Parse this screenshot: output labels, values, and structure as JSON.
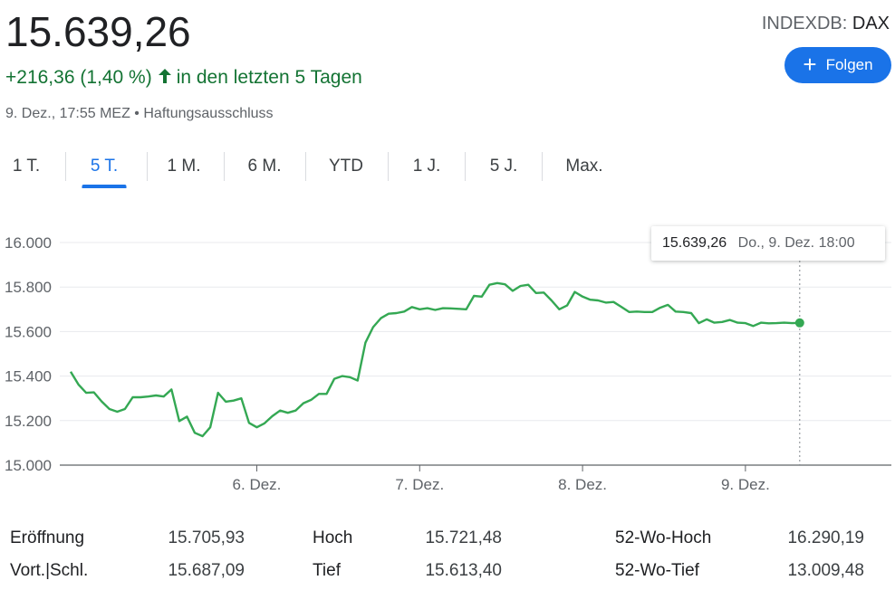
{
  "quote": {
    "price": "15.639,26",
    "change": "+216,36 (1,40 %)",
    "change_period": "in den letzten 5 Tagen",
    "timestamp": "9. Dez., 17:55 MEZ",
    "separator": "•",
    "disclaimer": "Haftungsausschluss",
    "exchange_prefix": "INDEXDB:",
    "symbol": "DAX",
    "follow_label": "Folgen",
    "accent_color": "#1a73e8",
    "positive_color": "#137333"
  },
  "tabs": [
    {
      "label": "1 T.",
      "active": false
    },
    {
      "label": "5 T.",
      "active": true
    },
    {
      "label": "1 M.",
      "active": false
    },
    {
      "label": "6 M.",
      "active": false
    },
    {
      "label": "YTD",
      "active": false
    },
    {
      "label": "1 J.",
      "active": false
    },
    {
      "label": "5 J.",
      "active": false
    },
    {
      "label": "Max.",
      "active": false
    }
  ],
  "tooltip": {
    "value": "15.639,26",
    "time": "Do., 9. Dez. 18:00"
  },
  "chart_data": {
    "type": "line",
    "title": "",
    "xlabel": "",
    "ylabel": "",
    "ylim": [
      15000,
      16000
    ],
    "y_ticks": [
      15000,
      15200,
      15400,
      15600,
      15800,
      16000
    ],
    "y_tick_labels": [
      "15.000",
      "15.200",
      "15.400",
      "15.600",
      "15.800",
      "16.000"
    ],
    "x_ticks": [
      {
        "label": "6. Dez.",
        "index": 24
      },
      {
        "label": "7. Dez.",
        "index": 45
      },
      {
        "label": "8. Dez.",
        "index": 66
      },
      {
        "label": "9. Dez.",
        "index": 87
      }
    ],
    "x_count": 106,
    "grid": true,
    "legend": "none",
    "line_color": "#34a853",
    "series": [
      {
        "values": [
          15420,
          15362,
          15325,
          15327,
          15286,
          15252,
          15240,
          15252,
          15305,
          15305,
          15308,
          15313,
          15308,
          15340,
          15198,
          15218,
          15145,
          15130,
          15170,
          15325,
          15285,
          15290,
          15300,
          15190,
          15170,
          15188,
          15220,
          15245,
          15235,
          15245,
          15278,
          15293,
          15320,
          15320,
          15388,
          15400,
          15395,
          15380,
          15550,
          15620,
          15660,
          15680,
          15683,
          15690,
          15710,
          15700,
          15705,
          15697,
          15705,
          15704,
          15702,
          15700,
          15760,
          15757,
          15810,
          15818,
          15812,
          15783,
          15805,
          15810,
          15773,
          15775,
          15740,
          15700,
          15717,
          15778,
          15757,
          15743,
          15740,
          15730,
          15733,
          15711,
          15688,
          15690,
          15688,
          15688,
          15707,
          15720,
          15690,
          15688,
          15683,
          15638,
          15655,
          15640,
          15643,
          15652,
          15640,
          15638,
          15625,
          15640,
          15637,
          15638,
          15640,
          15638,
          15639
        ]
      }
    ]
  },
  "stats": [
    {
      "label": "Eröffnung",
      "value": "15.705,93"
    },
    {
      "label": "Vort.|Schl.",
      "value": "15.687,09"
    },
    {
      "label": "Hoch",
      "value": "15.721,48"
    },
    {
      "label": "Tief",
      "value": "15.613,40"
    },
    {
      "label": "52-Wo-Hoch",
      "value": "16.290,19"
    },
    {
      "label": "52-Wo-Tief",
      "value": "13.009,48"
    }
  ]
}
